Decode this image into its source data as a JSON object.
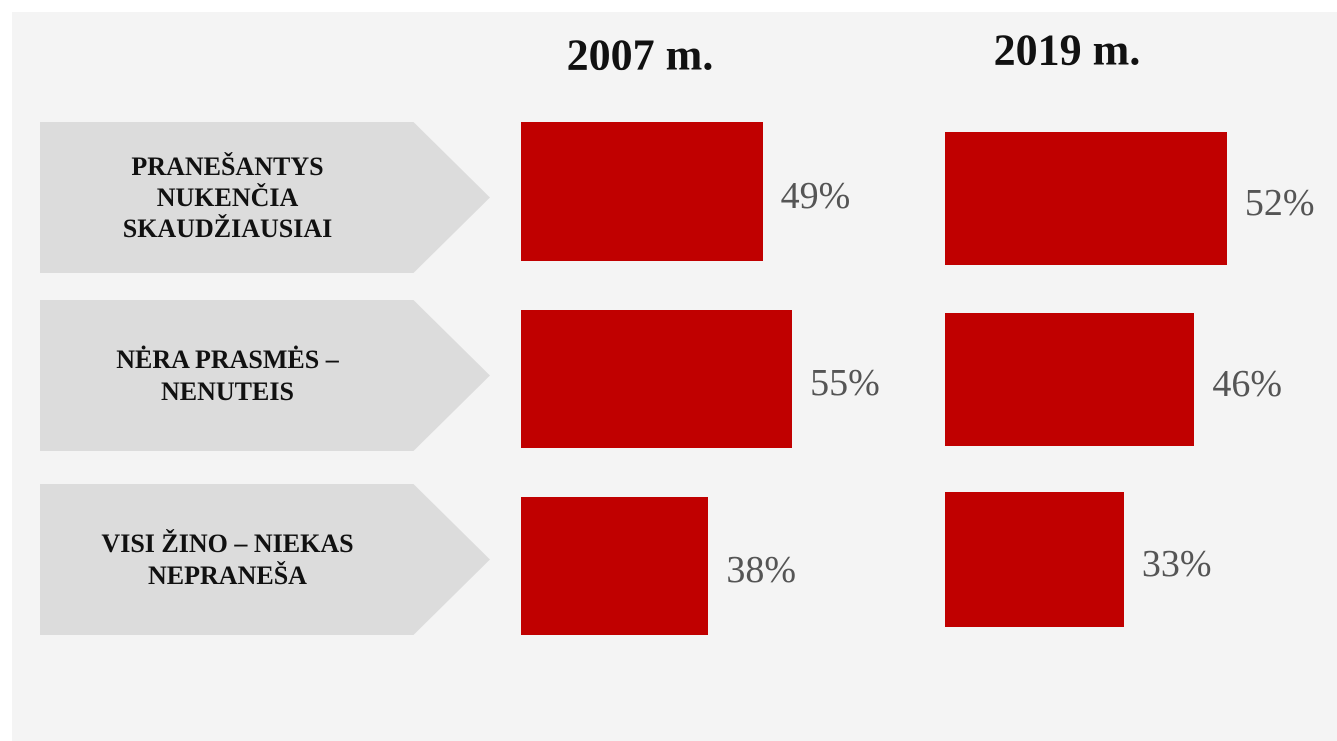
{
  "chart_data": {
    "type": "bar",
    "orientation": "horizontal",
    "categories": [
      "PRANEŠANTYS\nNUKENČIA\nSKAUDŽIAUSIAI",
      "NĖRA PRASMĖS –\nNENUTEIS",
      "VISI ŽINO – NIEKAS\nNEPRANEŠA"
    ],
    "series": [
      {
        "name": "2007 m.",
        "color": "#c00000",
        "values": [
          49,
          55,
          38
        ],
        "value_labels": [
          "49%",
          "55%",
          "38%"
        ]
      },
      {
        "name": "2019 m.",
        "color": "#c00000",
        "values": [
          52,
          46,
          33
        ],
        "value_labels": [
          "52%",
          "46%",
          "33%"
        ]
      }
    ]
  }
}
